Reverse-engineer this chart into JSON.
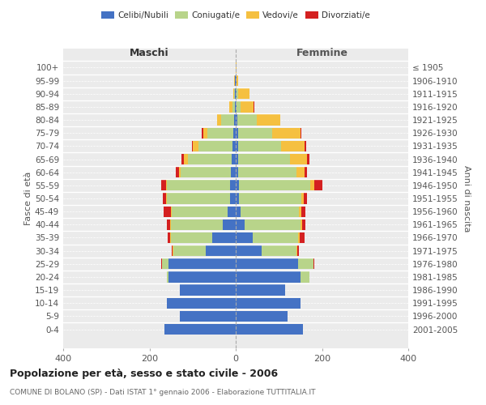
{
  "age_groups": [
    "0-4",
    "5-9",
    "10-14",
    "15-19",
    "20-24",
    "25-29",
    "30-34",
    "35-39",
    "40-44",
    "45-49",
    "50-54",
    "55-59",
    "60-64",
    "65-69",
    "70-74",
    "75-79",
    "80-84",
    "85-89",
    "90-94",
    "95-99",
    "100+"
  ],
  "birth_years": [
    "2001-2005",
    "1996-2000",
    "1991-1995",
    "1986-1990",
    "1981-1985",
    "1976-1980",
    "1971-1975",
    "1966-1970",
    "1961-1965",
    "1956-1960",
    "1951-1955",
    "1946-1950",
    "1941-1945",
    "1936-1940",
    "1931-1935",
    "1926-1930",
    "1921-1925",
    "1916-1920",
    "1911-1915",
    "1906-1910",
    "≤ 1905"
  ],
  "colors": {
    "celibi": "#4472c4",
    "coniugati": "#b8d48a",
    "vedovi": "#f5c040",
    "divorziati": "#d42020"
  },
  "maschi": {
    "celibi": [
      165,
      130,
      160,
      130,
      155,
      155,
      70,
      55,
      30,
      18,
      14,
      14,
      12,
      10,
      7,
      5,
      3,
      2,
      1,
      1,
      0
    ],
    "coniugati": [
      0,
      0,
      0,
      0,
      5,
      15,
      75,
      95,
      120,
      130,
      145,
      145,
      115,
      100,
      80,
      60,
      30,
      5,
      2,
      1,
      0
    ],
    "vedovi": [
      0,
      0,
      0,
      0,
      0,
      1,
      1,
      2,
      2,
      2,
      2,
      3,
      4,
      10,
      12,
      10,
      10,
      8,
      3,
      1,
      0
    ],
    "divorziati": [
      0,
      0,
      0,
      0,
      0,
      1,
      3,
      5,
      8,
      18,
      8,
      10,
      8,
      5,
      3,
      3,
      0,
      0,
      0,
      0,
      0
    ]
  },
  "femmine": {
    "celibi": [
      155,
      120,
      150,
      115,
      150,
      145,
      60,
      40,
      20,
      12,
      8,
      8,
      5,
      5,
      5,
      5,
      3,
      2,
      1,
      1,
      0
    ],
    "coniugati": [
      0,
      0,
      0,
      0,
      20,
      35,
      80,
      105,
      130,
      135,
      145,
      165,
      135,
      120,
      100,
      80,
      45,
      10,
      5,
      1,
      0
    ],
    "vedovi": [
      0,
      0,
      0,
      0,
      0,
      1,
      2,
      3,
      4,
      5,
      5,
      10,
      20,
      40,
      55,
      65,
      55,
      30,
      25,
      4,
      1
    ],
    "divorziati": [
      0,
      0,
      0,
      0,
      0,
      1,
      5,
      12,
      8,
      10,
      8,
      18,
      6,
      5,
      3,
      3,
      1,
      1,
      1,
      0,
      0
    ]
  },
  "title": "Popolazione per età, sesso e stato civile - 2006",
  "subtitle": "COMUNE DI BOLANO (SP) - Dati ISTAT 1° gennaio 2006 - Elaborazione TUTTITALIA.IT",
  "xlabel_maschi": "Maschi",
  "xlabel_femmine": "Femmine",
  "ylabel": "Fasce di età",
  "ylabel_right": "Anni di nascita",
  "xlim": 400,
  "bg_color": "#ffffff",
  "plot_bg": "#ebebeb",
  "grid_color": "#ffffff",
  "legend_labels": [
    "Celibi/Nubili",
    "Coniugati/e",
    "Vedovi/e",
    "Divorziati/e"
  ]
}
